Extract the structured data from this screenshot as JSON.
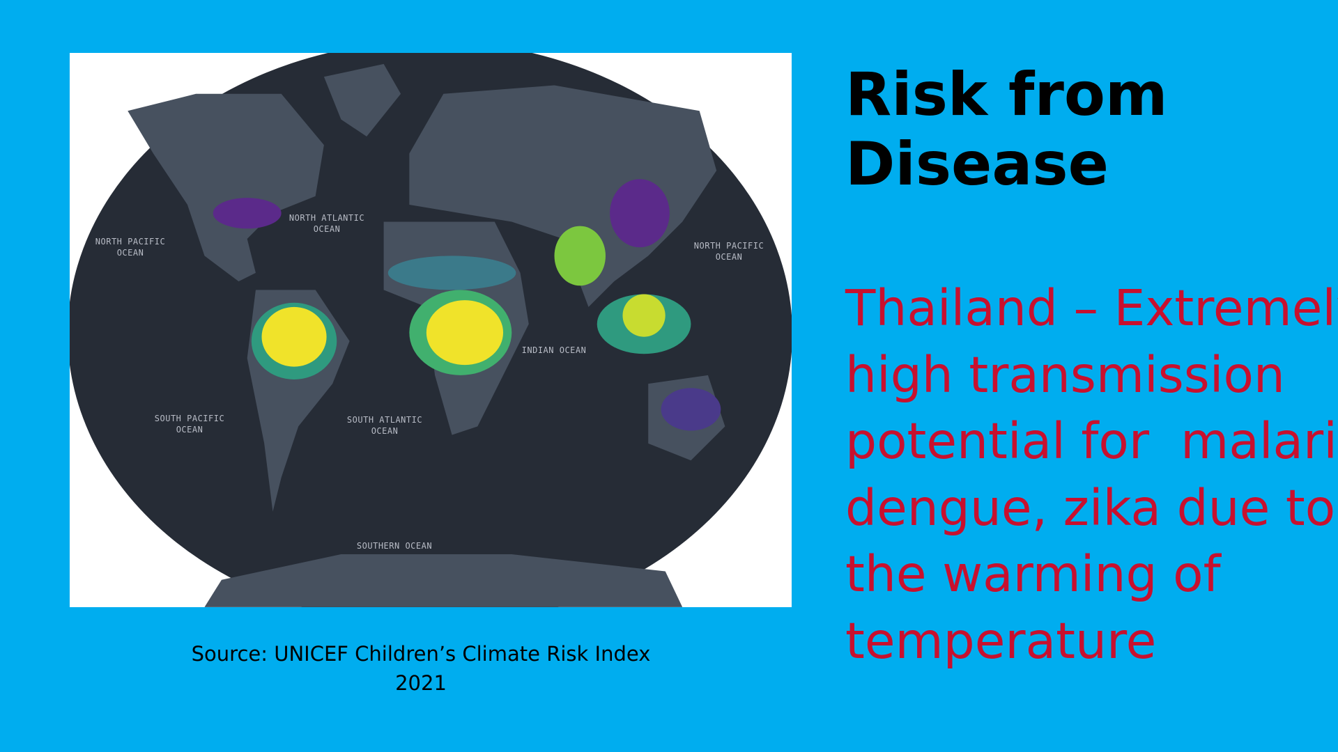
{
  "slide": {
    "title_lines": [
      "Risk from",
      "Disease"
    ],
    "body_lines": [
      "Thailand – Extremely",
      "high transmission",
      "potential for  malaria,",
      "dengue, zika due to",
      "the warming of",
      "temperature"
    ],
    "caption_lines": [
      "Source: UNICEF Children’s Climate Risk Index",
      "2021"
    ],
    "map_labels": [
      "NORTH PACIFIC OCEAN",
      "NORTH ATLANTIC OCEAN",
      "NORTH PACIFIC OCEAN",
      "INDIAN OCEAN",
      "SOUTH PACIFIC OCEAN",
      "SOUTH ATLANTIC OCEAN",
      "SOUTHERN OCEAN"
    ]
  }
}
